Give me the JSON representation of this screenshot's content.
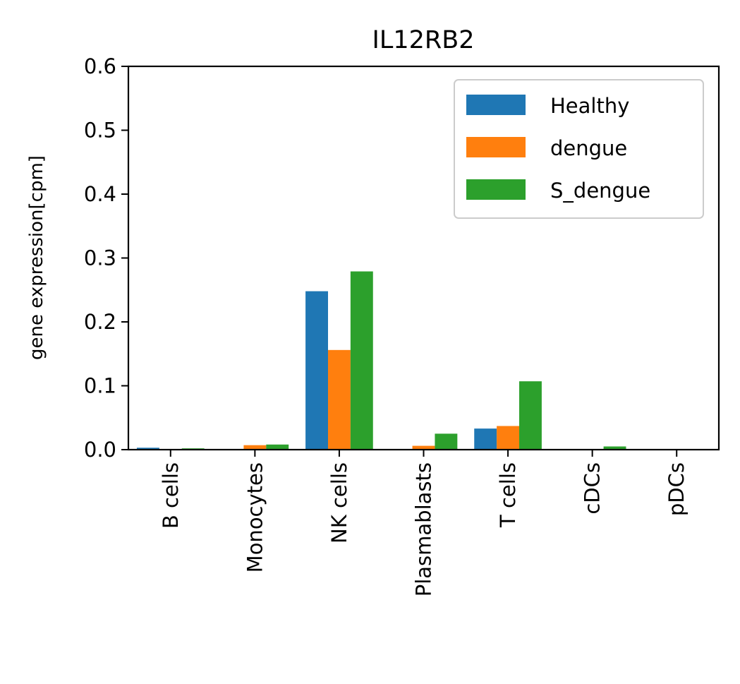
{
  "chart_data": {
    "type": "bar",
    "title": "IL12RB2",
    "xlabel": "",
    "ylabel": "gene expression[cpm]",
    "ylim": [
      0,
      0.6
    ],
    "yticks": [
      "0.0",
      "0.1",
      "0.2",
      "0.3",
      "0.4",
      "0.5",
      "0.6"
    ],
    "grid": false,
    "legend_position": "top-right",
    "categories": [
      "B cells",
      "Monocytes",
      "NK cells",
      "Plasmablasts",
      "T cells",
      "cDCs",
      "pDCs"
    ],
    "series": [
      {
        "name": "Healthy",
        "color": "#1f77b4",
        "values": [
          0.003,
          0.0,
          0.248,
          0.0,
          0.033,
          0.0,
          0.0
        ]
      },
      {
        "name": "dengue",
        "color": "#ff7f0e",
        "values": [
          0.0,
          0.007,
          0.156,
          0.006,
          0.037,
          0.0,
          0.0
        ]
      },
      {
        "name": "S_dengue",
        "color": "#2ca02c",
        "values": [
          0.002,
          0.008,
          0.279,
          0.025,
          0.107,
          0.005,
          0.0
        ]
      }
    ]
  }
}
